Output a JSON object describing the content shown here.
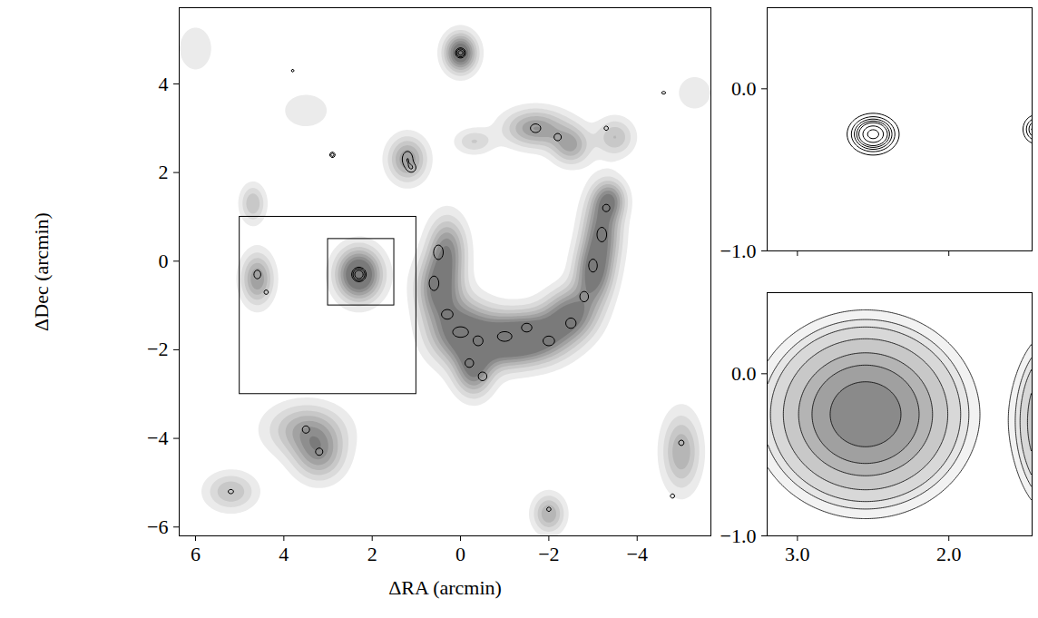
{
  "chart_data": [
    {
      "type": "contour",
      "x_label": "ΔRA (arcmin)",
      "y_label": "ΔDec (arcmin)",
      "xlim": [
        6.37,
        -5.67
      ],
      "ylim": [
        -6.2,
        5.72
      ],
      "xticks": [
        6,
        4,
        2,
        0,
        -2,
        -4
      ],
      "yticks": [
        -6,
        -4,
        -2,
        0,
        2,
        4
      ],
      "tick_labels": true,
      "gray_levels": [
        0.1,
        0.2,
        0.3,
        0.4,
        0.5,
        0.6,
        0.7
      ],
      "gray_colors": [
        "#ebebeb",
        "#dadada",
        "#c8c8c8",
        "#b6b6b6",
        "#a2a2a2",
        "#8e8e8e",
        "#7a7a7a"
      ],
      "gray_sources": [
        {
          "x": 0,
          "y": 4.7,
          "sx": 0.25,
          "sy": 0.3,
          "amp": 0.9
        },
        {
          "x": 2.3,
          "y": -0.3,
          "sx": 0.35,
          "sy": 0.4,
          "amp": 1.0
        },
        {
          "x": 1.2,
          "y": 2.3,
          "sx": 0.3,
          "sy": 0.35,
          "amp": 0.6
        },
        {
          "x": 4.6,
          "y": -0.4,
          "sx": 0.25,
          "sy": 0.4,
          "amp": 0.6
        },
        {
          "x": 4.7,
          "y": 1.3,
          "sx": 0.2,
          "sy": 0.3,
          "amp": 0.4
        },
        {
          "x": 0.3,
          "y": 0.3,
          "sx": 0.3,
          "sy": 0.5,
          "amp": 0.6
        },
        {
          "x": 0.5,
          "y": -0.6,
          "sx": 0.35,
          "sy": 0.5,
          "amp": 0.7
        },
        {
          "x": 0,
          "y": -1.6,
          "sx": 0.5,
          "sy": 0.5,
          "amp": 0.8
        },
        {
          "x": -0.3,
          "y": -2.5,
          "sx": 0.3,
          "sy": 0.4,
          "amp": 0.6
        },
        {
          "x": -1,
          "y": -1.8,
          "sx": 0.5,
          "sy": 0.4,
          "amp": 0.8
        },
        {
          "x": -1.8,
          "y": -1.7,
          "sx": 0.5,
          "sy": 0.4,
          "amp": 0.7
        },
        {
          "x": -2.5,
          "y": -1.2,
          "sx": 0.4,
          "sy": 0.4,
          "amp": 0.7
        },
        {
          "x": -3,
          "y": -0.3,
          "sx": 0.3,
          "sy": 0.5,
          "amp": 0.7
        },
        {
          "x": -3.2,
          "y": 0.7,
          "sx": 0.3,
          "sy": 0.6,
          "amp": 0.7
        },
        {
          "x": -3.4,
          "y": 1.4,
          "sx": 0.25,
          "sy": 0.3,
          "amp": 0.5
        },
        {
          "x": -1.7,
          "y": 3.0,
          "sx": 0.5,
          "sy": 0.3,
          "amp": 0.6
        },
        {
          "x": -2.5,
          "y": 2.6,
          "sx": 0.3,
          "sy": 0.3,
          "amp": 0.5
        },
        {
          "x": -3.5,
          "y": 2.8,
          "sx": 0.3,
          "sy": 0.3,
          "amp": 0.4
        },
        {
          "x": -0.3,
          "y": 2.7,
          "sx": 0.3,
          "sy": 0.2,
          "amp": 0.3
        },
        {
          "x": 3.5,
          "y": -3.8,
          "sx": 0.6,
          "sy": 0.4,
          "amp": 0.5
        },
        {
          "x": 3.2,
          "y": -4.4,
          "sx": 0.4,
          "sy": 0.4,
          "amp": 0.5
        },
        {
          "x": 5.2,
          "y": -5.2,
          "sx": 0.4,
          "sy": 0.3,
          "amp": 0.4
        },
        {
          "x": -2,
          "y": -5.7,
          "sx": 0.25,
          "sy": 0.3,
          "amp": 0.5
        },
        {
          "x": -5,
          "y": -4.3,
          "sx": 0.3,
          "sy": 0.6,
          "amp": 0.5
        },
        {
          "x": 6,
          "y": 4.8,
          "sx": 0.3,
          "sy": 0.4,
          "amp": 0.2
        },
        {
          "x": 3.5,
          "y": 3.4,
          "sx": 0.4,
          "sy": 0.3,
          "amp": 0.2
        },
        {
          "x": -5.3,
          "y": 3.8,
          "sx": 0.3,
          "sy": 0.3,
          "amp": 0.2
        }
      ],
      "line_levels": [
        0.5,
        1,
        2
      ],
      "line_sources": [
        {
          "x": 0,
          "y": 4.7,
          "sx": 0.06,
          "sy": 0.06,
          "amp": 3
        },
        {
          "x": 2.3,
          "y": -0.3,
          "sx": 0.08,
          "sy": 0.08,
          "amp": 4
        },
        {
          "x": 2.9,
          "y": 2.4,
          "sx": 0.04,
          "sy": 0.04,
          "amp": 1.5
        },
        {
          "x": 1.2,
          "y": 2.3,
          "sx": 0.1,
          "sy": 0.15,
          "amp": 1
        },
        {
          "x": 1.1,
          "y": 2.1,
          "sx": 0.08,
          "sy": 0.08,
          "amp": 0.8
        },
        {
          "x": 4.6,
          "y": -0.3,
          "sx": 0.08,
          "sy": 0.1,
          "amp": 0.8
        },
        {
          "x": 4.4,
          "y": -0.7,
          "sx": 0.06,
          "sy": 0.06,
          "amp": 0.7
        },
        {
          "x": 0.5,
          "y": 0.2,
          "sx": 0.1,
          "sy": 0.15,
          "amp": 0.9
        },
        {
          "x": 0.6,
          "y": -0.5,
          "sx": 0.1,
          "sy": 0.15,
          "amp": 0.9
        },
        {
          "x": 0.3,
          "y": -1.2,
          "sx": 0.12,
          "sy": 0.1,
          "amp": 0.9
        },
        {
          "x": 0,
          "y": -1.6,
          "sx": 0.15,
          "sy": 0.1,
          "amp": 1
        },
        {
          "x": -0.4,
          "y": -1.8,
          "sx": 0.1,
          "sy": 0.1,
          "amp": 0.9
        },
        {
          "x": -0.2,
          "y": -2.3,
          "sx": 0.1,
          "sy": 0.1,
          "amp": 0.8
        },
        {
          "x": -0.5,
          "y": -2.6,
          "sx": 0.1,
          "sy": 0.1,
          "amp": 0.8
        },
        {
          "x": -1,
          "y": -1.7,
          "sx": 0.15,
          "sy": 0.1,
          "amp": 0.9
        },
        {
          "x": -1.5,
          "y": -1.5,
          "sx": 0.12,
          "sy": 0.1,
          "amp": 0.8
        },
        {
          "x": -2,
          "y": -1.8,
          "sx": 0.12,
          "sy": 0.1,
          "amp": 0.9
        },
        {
          "x": -2.5,
          "y": -1.4,
          "sx": 0.12,
          "sy": 0.12,
          "amp": 0.8
        },
        {
          "x": -2.8,
          "y": -0.8,
          "sx": 0.1,
          "sy": 0.12,
          "amp": 0.8
        },
        {
          "x": -3,
          "y": -0.1,
          "sx": 0.1,
          "sy": 0.15,
          "amp": 0.8
        },
        {
          "x": -3.2,
          "y": 0.6,
          "sx": 0.1,
          "sy": 0.15,
          "amp": 0.9
        },
        {
          "x": -3.3,
          "y": 1.2,
          "sx": 0.1,
          "sy": 0.1,
          "amp": 0.7
        },
        {
          "x": -1.7,
          "y": 3.0,
          "sx": 0.12,
          "sy": 0.1,
          "amp": 0.8
        },
        {
          "x": -2.2,
          "y": 2.8,
          "sx": 0.1,
          "sy": 0.1,
          "amp": 0.7
        },
        {
          "x": -3.3,
          "y": 3.0,
          "sx": 0.08,
          "sy": 0.08,
          "amp": 0.6
        },
        {
          "x": 3.5,
          "y": -3.8,
          "sx": 0.1,
          "sy": 0.1,
          "amp": 0.7
        },
        {
          "x": 3.2,
          "y": -4.3,
          "sx": 0.1,
          "sy": 0.1,
          "amp": 0.7
        },
        {
          "x": 5.2,
          "y": -5.2,
          "sx": 0.1,
          "sy": 0.08,
          "amp": 0.6
        },
        {
          "x": -2,
          "y": -5.6,
          "sx": 0.08,
          "sy": 0.08,
          "amp": 0.6
        },
        {
          "x": -5,
          "y": -4.1,
          "sx": 0.1,
          "sy": 0.1,
          "amp": 0.6
        },
        {
          "x": -4.8,
          "y": -5.3,
          "sx": 0.08,
          "sy": 0.08,
          "amp": 0.6
        },
        {
          "x": 3.8,
          "y": 4.3,
          "sx": 0.05,
          "sy": 0.05,
          "amp": 0.6
        },
        {
          "x": -4.6,
          "y": 3.8,
          "sx": 0.08,
          "sy": 0.05,
          "amp": 0.6
        }
      ],
      "boxes": [
        {
          "x": [
            5,
            1
          ],
          "y": [
            1,
            -3
          ]
        },
        {
          "x": [
            3,
            1.5
          ],
          "y": [
            0.5,
            -1
          ]
        }
      ]
    },
    {
      "type": "contour",
      "xlim": [
        3.2,
        1.45
      ],
      "ylim": [
        -1,
        0.5
      ],
      "xticks": [
        3,
        2
      ],
      "yticks": [
        0,
        -1
      ],
      "tick_labels": "y",
      "line_levels": [
        0.1,
        0.2,
        0.3,
        0.4,
        0.5,
        0.7,
        0.9
      ],
      "line_sources": [
        {
          "x": 2.5,
          "y": -0.28,
          "sx": 0.08,
          "sy": 0.06,
          "amp": 1
        },
        {
          "x": 1.42,
          "y": -0.25,
          "sx": 0.05,
          "sy": 0.05,
          "amp": 0.5
        }
      ]
    },
    {
      "type": "contour",
      "xlim": [
        3.2,
        1.45
      ],
      "ylim": [
        -1,
        0.5
      ],
      "xticks": [
        3,
        2
      ],
      "yticks": [
        0,
        -1
      ],
      "tick_labels": true,
      "gray_levels": [
        0.1,
        0.15,
        0.2,
        0.3,
        0.45,
        0.6,
        0.8
      ],
      "gray_colors": [
        "#f2f2f2",
        "#e6e6e6",
        "#d8d8d8",
        "#c8c8c8",
        "#b4b4b4",
        "#a0a0a0",
        "#8a8a8a"
      ],
      "gray_sources": [
        {
          "x": 2.55,
          "y": -0.25,
          "sx": 0.35,
          "sy": 0.3,
          "amp": 1
        },
        {
          "x": 1.3,
          "y": -0.3,
          "sx": 0.15,
          "sy": 0.3,
          "amp": 0.6
        }
      ]
    }
  ]
}
